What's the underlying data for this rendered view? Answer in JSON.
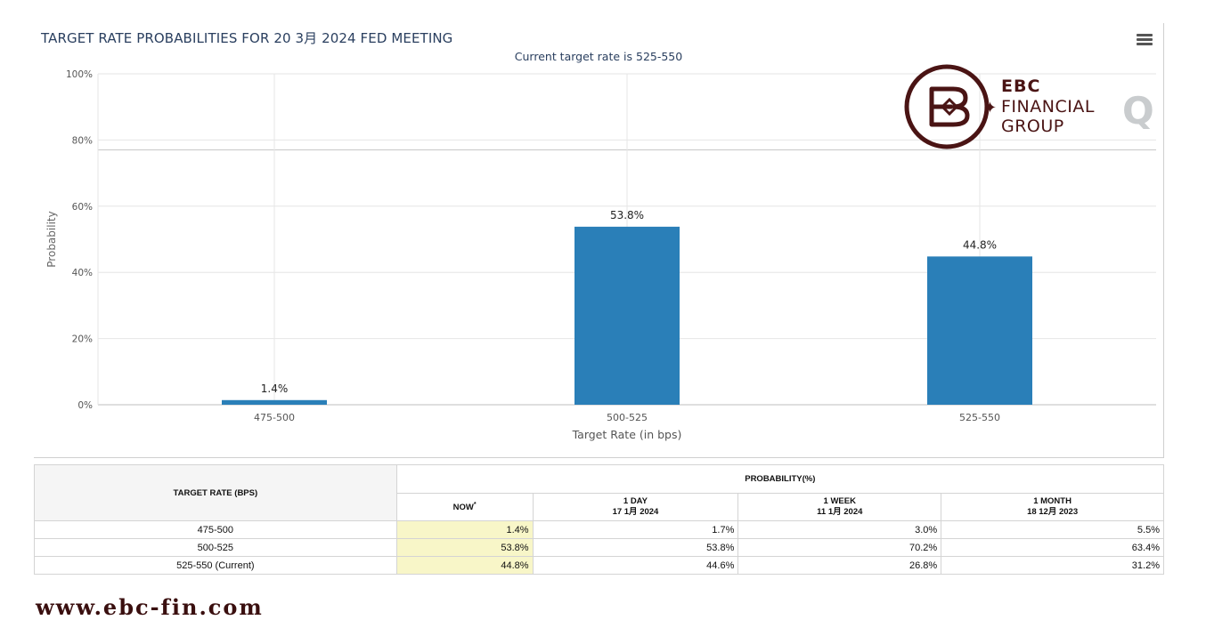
{
  "chart": {
    "title": "TARGET RATE PROBABILITIES FOR 20 3月 2024 FED MEETING",
    "subtitle": "Current target rate is 525-550",
    "menu_icon": "hamburger-menu-icon"
  },
  "chart_data": {
    "type": "bar",
    "categories": [
      "475-500",
      "500-525",
      "525-550"
    ],
    "values": [
      1.4,
      53.8,
      44.8
    ],
    "data_labels": [
      "1.4%",
      "53.8%",
      "44.8%"
    ],
    "xlabel": "Target Rate (in bps)",
    "ylabel": "Probability",
    "ylim": [
      0,
      100
    ],
    "yticks": [
      "0%",
      "20%",
      "40%",
      "60%",
      "80%",
      "100%"
    ],
    "bar_color": "#2a7fb8",
    "grid": true,
    "reference_line": 77
  },
  "logo": {
    "line1": "EBC",
    "line2": "FINANCIAL",
    "line3": "GROUP",
    "mark": "Q",
    "brand_color": "#4a1414"
  },
  "table": {
    "header_rate": "TARGET RATE (BPS)",
    "header_prob": "PROBABILITY(%)",
    "columns": [
      {
        "label": "NOW",
        "marker": "*",
        "sub": ""
      },
      {
        "label": "1 DAY",
        "sub": "17 1月 2024"
      },
      {
        "label": "1 WEEK",
        "sub": "11 1月 2024"
      },
      {
        "label": "1 MONTH",
        "sub": "18 12月 2023"
      }
    ],
    "rows": [
      {
        "rate": "475-500",
        "now": "1.4%",
        "day": "1.7%",
        "week": "3.0%",
        "month": "5.5%"
      },
      {
        "rate": "500-525",
        "now": "53.8%",
        "day": "53.8%",
        "week": "70.2%",
        "month": "63.4%"
      },
      {
        "rate": "525-550 (Current)",
        "now": "44.8%",
        "day": "44.6%",
        "week": "26.8%",
        "month": "31.2%"
      }
    ]
  },
  "footer": {
    "url": "www.ebc-fin.com"
  }
}
